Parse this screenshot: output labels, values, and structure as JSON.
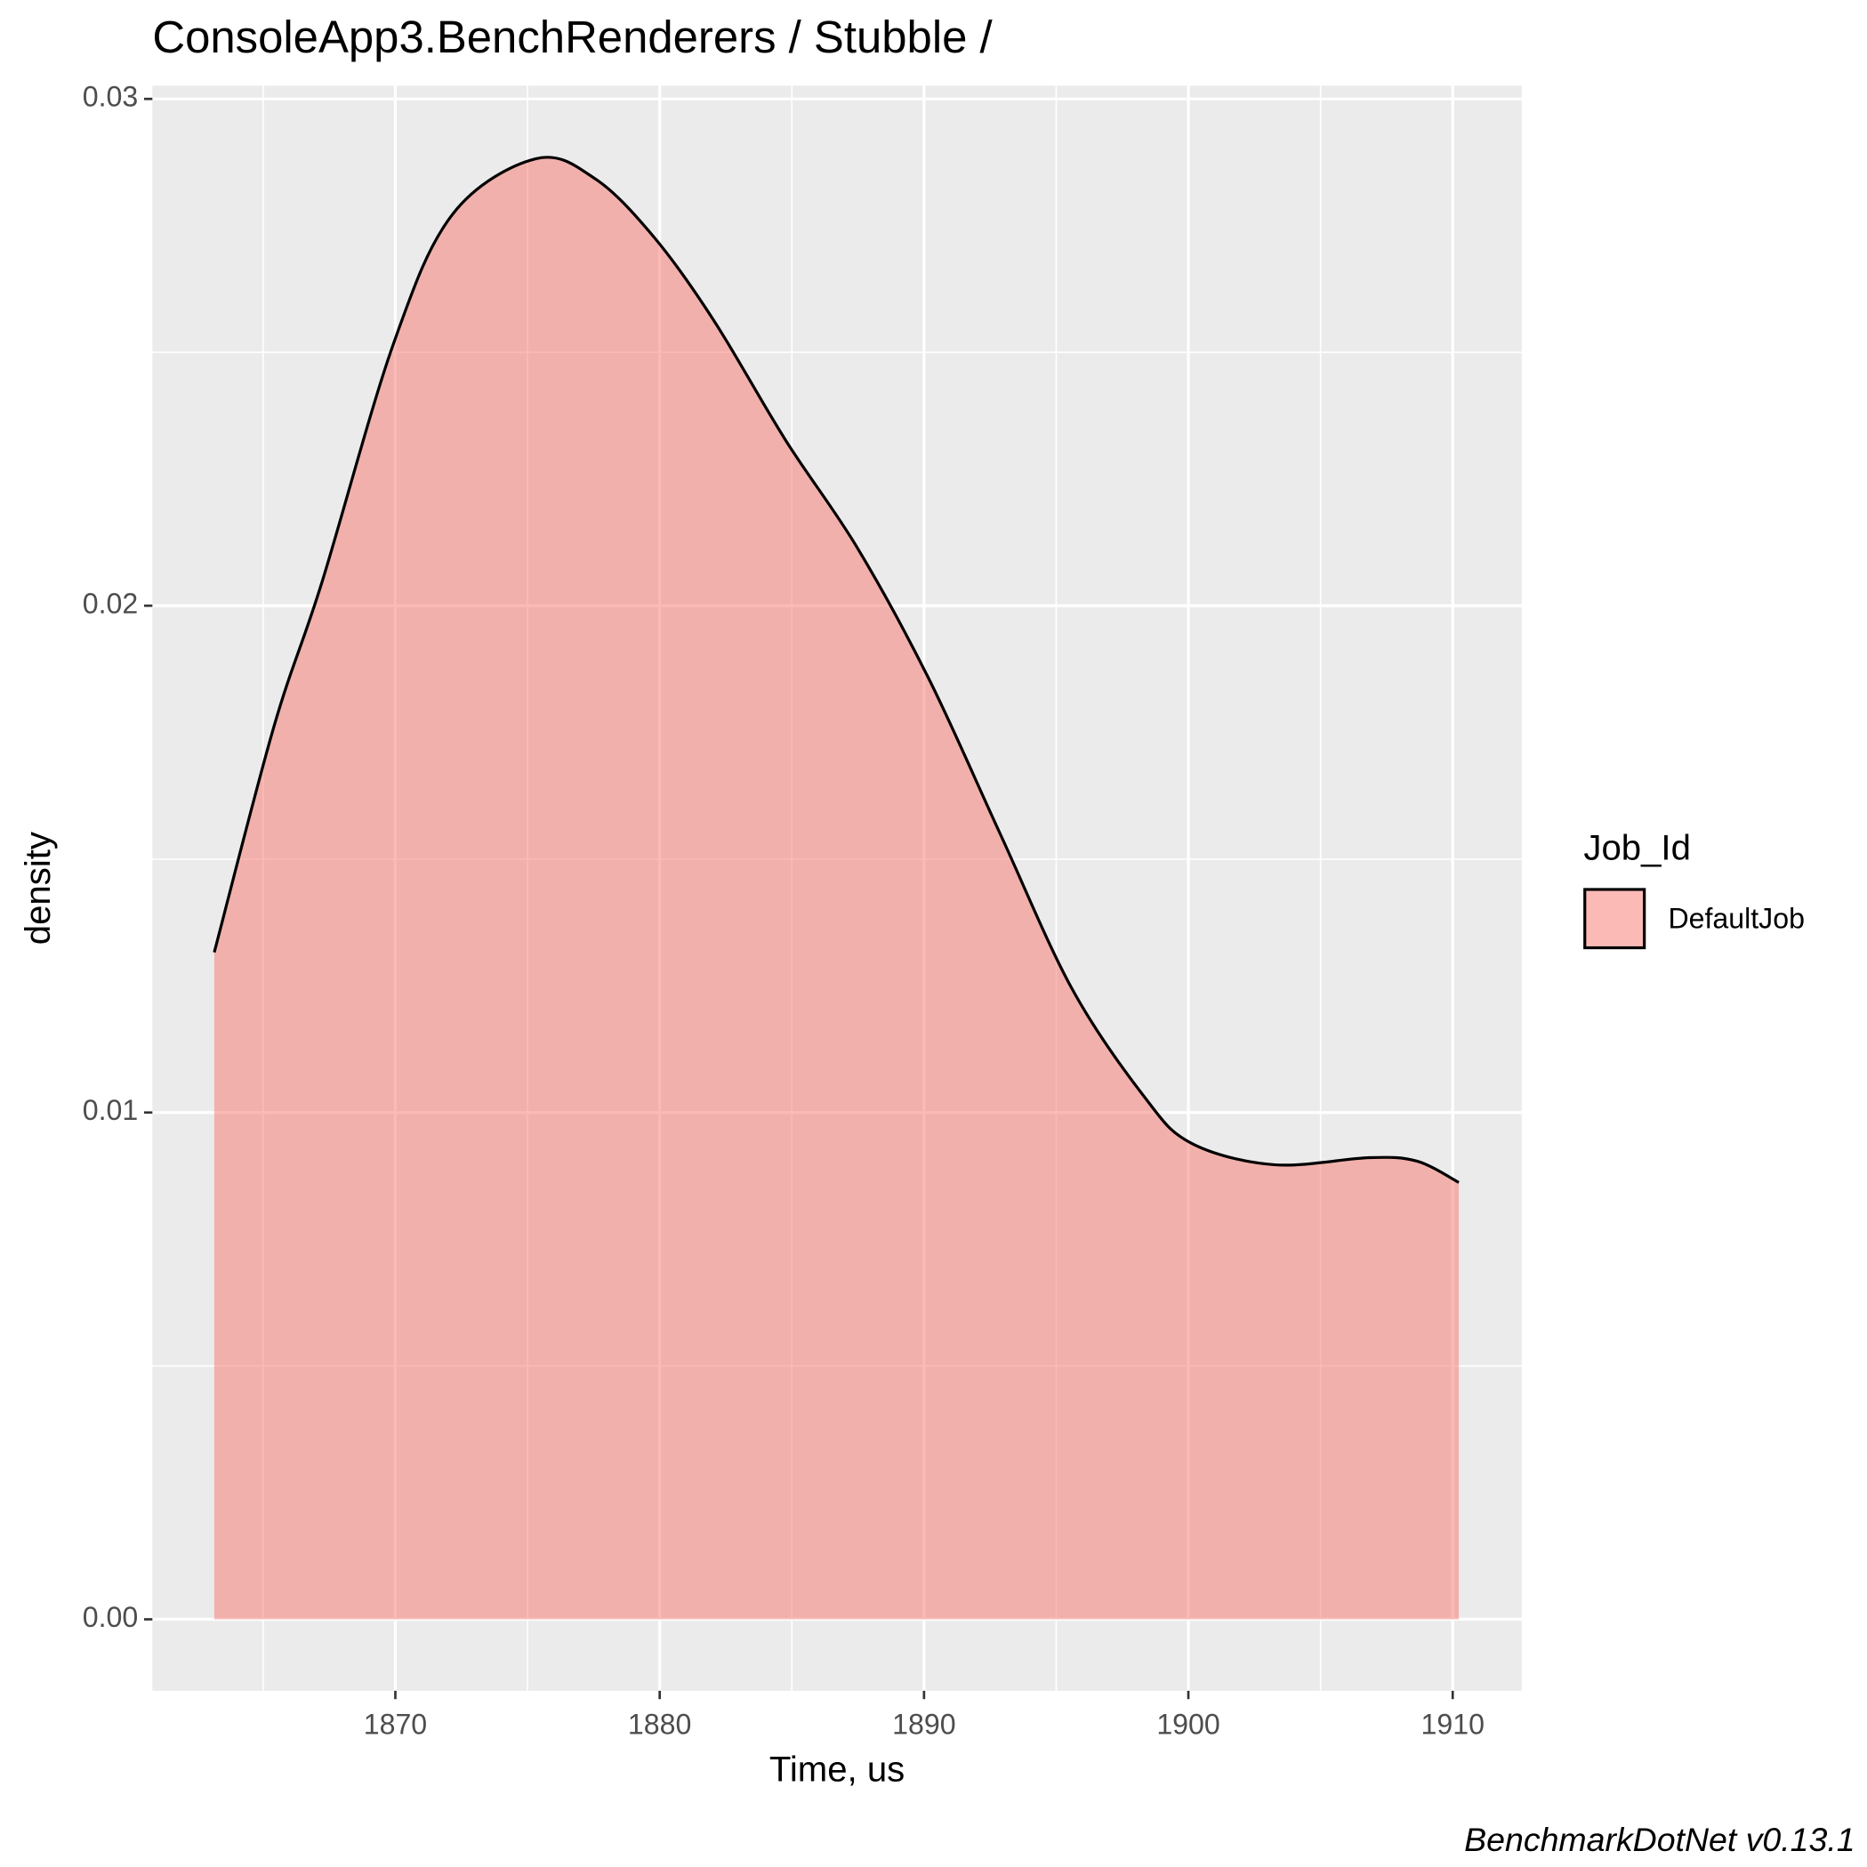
{
  "chart_data": {
    "type": "density",
    "title": "ConsoleApp3.BenchRenderers / Stubble /",
    "x_label": "Time, us",
    "y_label": "density",
    "caption": "BenchmarkDotNet v0.13.1",
    "legend_title": "Job_Id",
    "legend_position": "right",
    "x": [
      1863.15,
      1865.41,
      1867.21,
      1869.91,
      1872.16,
      1875.32,
      1877.57,
      1879.82,
      1882.07,
      1884.77,
      1887.48,
      1890.18,
      1892.88,
      1895.59,
      1898.29,
      1900.09,
      1903.24,
      1906.85,
      1908.65,
      1910.23
    ],
    "series": [
      {
        "name": "DefaultJob",
        "color": "#F8766D",
        "values": [
          0.01316,
          0.01762,
          0.02044,
          0.02514,
          0.02772,
          0.02882,
          0.02842,
          0.02725,
          0.02561,
          0.02326,
          0.02114,
          0.01856,
          0.0155,
          0.01245,
          0.01034,
          0.0094,
          0.00897,
          0.00911,
          0.00904,
          0.00862
        ]
      }
    ],
    "xlim": [
      1860.81,
      1912.61
    ],
    "xticks": [
      1870,
      1880,
      1890,
      1900,
      1910
    ],
    "ylim": [
      -0.00141,
      0.03026
    ],
    "yticks": [
      {
        "value": 0,
        "label": "0.00"
      },
      {
        "value": 0.01,
        "label": "0.01"
      },
      {
        "value": 0.02,
        "label": "0.02"
      },
      0.03
    ],
    "grid": true
  }
}
